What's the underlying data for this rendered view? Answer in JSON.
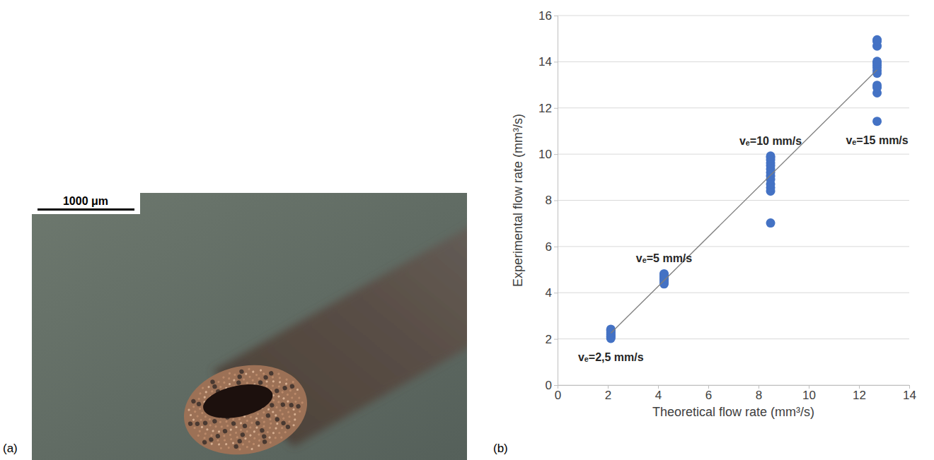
{
  "panel_labels": [
    "(a)",
    "(b)"
  ],
  "photo": {
    "scale_bar": "1000 μm"
  },
  "chart_data": {
    "type": "scatter",
    "x_label": "Theoretical flow rate (mm³/s)",
    "y_label": "Experimental flow rate (mm³/s)",
    "xlim": [
      0,
      14
    ],
    "xticks": [
      0,
      2,
      4,
      6,
      8,
      10,
      12,
      14
    ],
    "ylim": [
      0,
      16
    ],
    "yticks": [
      0,
      2,
      4,
      6,
      8,
      10,
      12,
      14,
      16
    ],
    "grid": true,
    "annotations": [
      "vₑ=2,5 mm/s",
      "vₑ=5 mm/s",
      "vₑ=10 mm/s",
      "vₑ=15 mm/s"
    ],
    "series": [
      {
        "type": "scatter",
        "color": "#4472c4",
        "marker": "circle",
        "x": [
          2.12,
          2.12,
          2.12,
          2.12,
          2.12,
          2.12,
          2.12,
          2.12,
          2.12,
          4.24,
          4.24,
          4.24,
          4.24,
          4.24,
          4.24,
          4.24,
          4.24,
          8.48,
          8.48,
          8.48,
          8.48,
          8.48,
          8.48,
          8.48,
          8.48,
          8.48,
          8.48,
          8.48,
          8.48,
          8.48,
          12.72,
          12.72,
          12.72,
          12.72,
          12.72,
          12.72,
          12.72,
          12.72,
          12.72,
          12.72,
          12.72,
          12.72,
          12.72
        ],
        "values": [
          2.02,
          2.08,
          2.12,
          2.18,
          2.22,
          2.28,
          2.33,
          2.38,
          2.42,
          4.38,
          4.45,
          4.52,
          4.58,
          4.64,
          4.7,
          4.76,
          4.82,
          7.02,
          8.4,
          8.55,
          8.7,
          8.9,
          9.05,
          9.2,
          9.35,
          9.5,
          9.62,
          9.75,
          9.85,
          9.92,
          11.42,
          12.65,
          12.88,
          12.98,
          13.5,
          13.62,
          13.75,
          13.85,
          13.95,
          14.02,
          14.68,
          14.88,
          14.95
        ]
      },
      {
        "type": "line",
        "color": "#7f7f7f",
        "line_style": "solid",
        "x": [
          2.12,
          12.72
        ],
        "values": [
          2.25,
          13.65
        ]
      }
    ]
  }
}
